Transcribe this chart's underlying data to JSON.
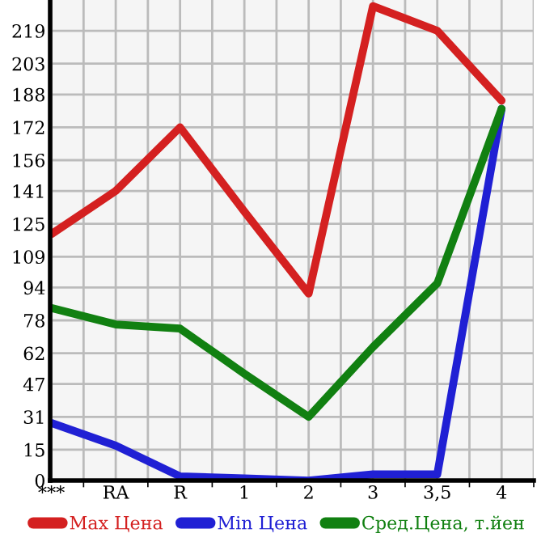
{
  "chart_data": {
    "type": "line",
    "categories": [
      "***",
      "RA",
      "R",
      "1",
      "2",
      "3",
      "3,5",
      "4"
    ],
    "series": [
      {
        "name": "Max Цена",
        "color": "#d42020",
        "values": [
          120,
          141,
          172,
          131,
          91,
          231,
          219,
          185
        ]
      },
      {
        "name": "Min Цена",
        "color": "#2020d4",
        "values": [
          28,
          17,
          2,
          1,
          0,
          3,
          3,
          181
        ]
      },
      {
        "name": "Сред.Цена, т.йен",
        "color": "#118011",
        "values": [
          84,
          76,
          74,
          52,
          31,
          65,
          96,
          181
        ]
      }
    ],
    "ylim": [
      0,
      234
    ],
    "yticks": [
      0,
      15,
      31,
      47,
      62,
      78,
      94,
      109,
      125,
      141,
      156,
      172,
      188,
      203,
      219
    ],
    "grid": true,
    "legend": "bottom",
    "marker": "none",
    "line_style": "solid"
  }
}
